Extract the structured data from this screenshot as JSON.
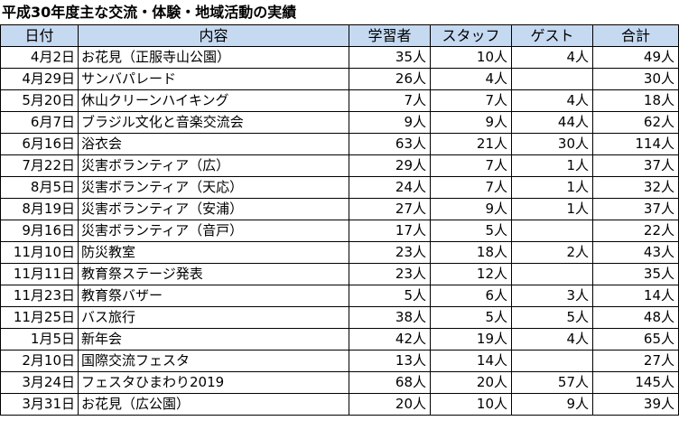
{
  "title": "平成30年度主な交流・体験・地域活動の実績",
  "headers": {
    "date": "日付",
    "content": "内容",
    "students": "学習者",
    "staff": "スタッフ",
    "guests": "ゲスト",
    "total": "合計"
  },
  "rows": [
    {
      "date": "4月2日",
      "content": "お花見（正服寺山公園）",
      "students": "35人",
      "staff": "10人",
      "guests": "4人",
      "total": "49人"
    },
    {
      "date": "4月29日",
      "content": "サンバパレード",
      "students": "26人",
      "staff": "4人",
      "guests": "",
      "total": "30人"
    },
    {
      "date": "5月20日",
      "content": "休山クリーンハイキング",
      "students": "7人",
      "staff": "7人",
      "guests": "4人",
      "total": "18人"
    },
    {
      "date": "6月7日",
      "content": "ブラジル文化と音楽交流会",
      "students": "9人",
      "staff": "9人",
      "guests": "44人",
      "total": "62人"
    },
    {
      "date": "6月16日",
      "content": "浴衣会",
      "students": "63人",
      "staff": "21人",
      "guests": "30人",
      "total": "114人"
    },
    {
      "date": "7月22日",
      "content": "災害ボランティア（広）",
      "students": "29人",
      "staff": "7人",
      "guests": "1人",
      "total": "37人"
    },
    {
      "date": "8月5日",
      "content": "災害ボランティア（天応）",
      "students": "24人",
      "staff": "7人",
      "guests": "1人",
      "total": "32人"
    },
    {
      "date": "8月19日",
      "content": "災害ボランティア（安浦）",
      "students": "27人",
      "staff": "9人",
      "guests": "1人",
      "total": "37人"
    },
    {
      "date": "9月16日",
      "content": "災害ボランティア（音戸）",
      "students": "17人",
      "staff": "5人",
      "guests": "",
      "total": "22人"
    },
    {
      "date": "11月10日",
      "content": "防災教室",
      "students": "23人",
      "staff": "18人",
      "guests": "2人",
      "total": "43人"
    },
    {
      "date": "11月11日",
      "content": "教育祭ステージ発表",
      "students": "23人",
      "staff": "12人",
      "guests": "",
      "total": "35人"
    },
    {
      "date": "11月23日",
      "content": "教育祭バザー",
      "students": "5人",
      "staff": "6人",
      "guests": "3人",
      "total": "14人"
    },
    {
      "date": "11月25日",
      "content": "バス旅行",
      "students": "38人",
      "staff": "5人",
      "guests": "5人",
      "total": "48人"
    },
    {
      "date": "1月5日",
      "content": "新年会",
      "students": "42人",
      "staff": "19人",
      "guests": "4人",
      "total": "65人"
    },
    {
      "date": "2月10日",
      "content": "国際交流フェスタ",
      "students": "13人",
      "staff": "14人",
      "guests": "",
      "total": "27人"
    },
    {
      "date": "3月24日",
      "content": "フェスタひまわり2019",
      "students": "68人",
      "staff": "20人",
      "guests": "57人",
      "total": "145人"
    },
    {
      "date": "3月31日",
      "content": "お花見（広公園）",
      "students": "20人",
      "staff": "10人",
      "guests": "9人",
      "total": "39人"
    }
  ]
}
